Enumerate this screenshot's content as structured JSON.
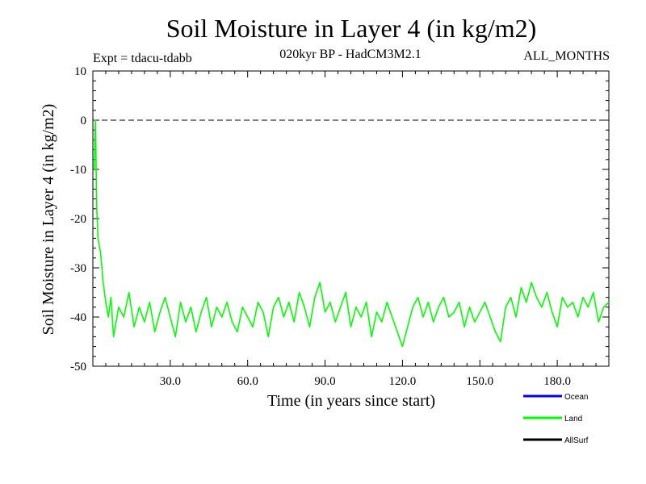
{
  "chart_data": {
    "type": "line",
    "title": "Soil Moisture in Layer 4 (in kg/m2)",
    "subtitle": "020kyr BP - HadCM3M2.1",
    "experiment": "Expt = tdacu-tdabb",
    "period": "ALL_MONTHS",
    "xlabel": "Time (in years since start)",
    "ylabel": "Soil Moisture in Layer 4 (in kg/m2)",
    "xlim": [
      0,
      200
    ],
    "ylim": [
      -50,
      10
    ],
    "x_ticks": [
      "30.0",
      "60.0",
      "90.0",
      "120.0",
      "150.0",
      "180.0"
    ],
    "x_tick_values": [
      30,
      60,
      90,
      120,
      150,
      180
    ],
    "y_ticks": [
      "10",
      "0",
      "-10",
      "-20",
      "-30",
      "-40",
      "-50"
    ],
    "y_tick_values": [
      10,
      0,
      -10,
      -20,
      -30,
      -40,
      -50
    ],
    "reference_line": 0,
    "legend": [
      {
        "name": "Ocean",
        "color": "#0000ff"
      },
      {
        "name": "Land",
        "color": "#00ff00"
      },
      {
        "name": "AllSurf",
        "color": "#000000"
      }
    ],
    "series": [
      {
        "name": "Land",
        "color": "#00ff00",
        "x": [
          0.5,
          1,
          1.5,
          2,
          3,
          4,
          5,
          6,
          7,
          8,
          10,
          12,
          14,
          16,
          18,
          20,
          22,
          24,
          26,
          28,
          30,
          32,
          34,
          36,
          38,
          40,
          42,
          44,
          46,
          48,
          50,
          52,
          54,
          56,
          58,
          60,
          62,
          64,
          66,
          68,
          70,
          72,
          74,
          76,
          78,
          80,
          82,
          84,
          86,
          88,
          90,
          92,
          94,
          96,
          98,
          100,
          102,
          104,
          106,
          108,
          110,
          112,
          114,
          116,
          118,
          120,
          122,
          124,
          126,
          128,
          130,
          132,
          134,
          136,
          138,
          140,
          142,
          144,
          146,
          148,
          150,
          152,
          154,
          156,
          158,
          160,
          162,
          164,
          166,
          168,
          170,
          172,
          174,
          176,
          178,
          180,
          182,
          184,
          186,
          188,
          190,
          192,
          194,
          196,
          198,
          200
        ],
        "values": [
          -10,
          0,
          -18,
          -24,
          -27,
          -33,
          -37,
          -40,
          -36,
          -44,
          -38,
          -40,
          -35,
          -42,
          -38,
          -41,
          -37,
          -43,
          -39,
          -36,
          -40,
          -44,
          -37,
          -41,
          -38,
          -43,
          -39,
          -36,
          -42,
          -38,
          -40,
          -37,
          -41,
          -43,
          -38,
          -40,
          -42,
          -37,
          -39,
          -44,
          -38,
          -36,
          -40,
          -37,
          -41,
          -35,
          -38,
          -42,
          -36,
          -33,
          -39,
          -37,
          -41,
          -38,
          -35,
          -42,
          -38,
          -40,
          -37,
          -44,
          -39,
          -41,
          -37,
          -40,
          -43,
          -46,
          -42,
          -38,
          -36,
          -40,
          -37,
          -41,
          -38,
          -36,
          -40,
          -39,
          -37,
          -42,
          -38,
          -41,
          -39,
          -37,
          -40,
          -43,
          -45,
          -38,
          -36,
          -40,
          -34,
          -37,
          -33,
          -36,
          -38,
          -35,
          -39,
          -42,
          -36,
          -38,
          -37,
          -40,
          -36,
          -38,
          -35,
          -41,
          -38,
          -37
        ]
      }
    ]
  }
}
